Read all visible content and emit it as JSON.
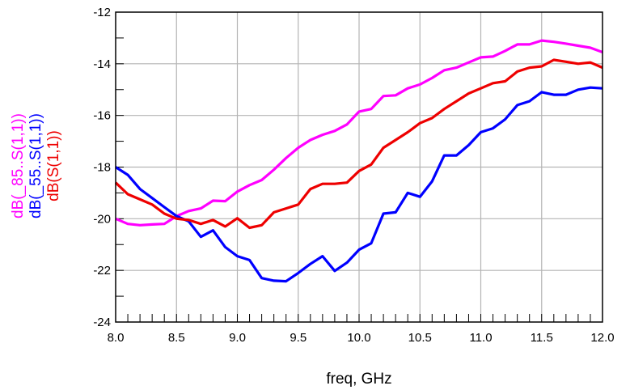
{
  "chart_data": {
    "type": "line",
    "xlabel": "freq, GHz",
    "xlim": [
      8.0,
      12.0
    ],
    "ylim": [
      -24,
      -12
    ],
    "x_ticks": [
      8.0,
      8.5,
      9.0,
      9.5,
      10.0,
      10.5,
      11.0,
      11.5,
      12.0
    ],
    "x_tick_labels": [
      "8.0",
      "8.5",
      "9.0",
      "9.5",
      "10.0",
      "10.5",
      "11.0",
      "11.5",
      "12.0"
    ],
    "x_minor_step": 0.1,
    "y_ticks": [
      -24,
      -22,
      -20,
      -18,
      -16,
      -14,
      -12
    ],
    "y_tick_labels": [
      "-24",
      "-22",
      "-20",
      "-18",
      "-16",
      "-14",
      "-12"
    ],
    "y_minor_step": 1,
    "grid": true,
    "x": [
      8.0,
      8.1,
      8.2,
      8.3,
      8.4,
      8.5,
      8.6,
      8.7,
      8.8,
      8.9,
      9.0,
      9.1,
      9.2,
      9.3,
      9.4,
      9.5,
      9.6,
      9.7,
      9.8,
      9.9,
      10.0,
      10.1,
      10.2,
      10.3,
      10.4,
      10.5,
      10.6,
      10.7,
      10.8,
      10.9,
      11.0,
      11.1,
      11.2,
      11.3,
      11.4,
      11.5,
      11.6,
      11.7,
      11.8,
      11.9,
      12.0
    ],
    "series": [
      {
        "name": "dB(_85..S(1,1))",
        "color": "#ff00ff",
        "values": [
          -20.0,
          -20.2,
          -20.25,
          -20.22,
          -20.2,
          -19.9,
          -19.7,
          -19.6,
          -19.3,
          -19.32,
          -18.95,
          -18.7,
          -18.5,
          -18.1,
          -17.65,
          -17.25,
          -16.95,
          -16.75,
          -16.6,
          -16.35,
          -15.85,
          -15.75,
          -15.25,
          -15.22,
          -14.95,
          -14.8,
          -14.55,
          -14.25,
          -14.15,
          -13.95,
          -13.75,
          -13.72,
          -13.5,
          -13.25,
          -13.25,
          -13.1,
          -13.15,
          -13.22,
          -13.3,
          -13.38,
          -13.55
        ]
      },
      {
        "name": "dB(_55..S(1,1))",
        "color": "#0000ff",
        "values": [
          -18.0,
          -18.3,
          -18.85,
          -19.2,
          -19.55,
          -19.9,
          -20.1,
          -20.7,
          -20.45,
          -21.1,
          -21.45,
          -21.6,
          -22.3,
          -22.4,
          -22.42,
          -22.1,
          -21.75,
          -21.45,
          -22.02,
          -21.7,
          -21.2,
          -20.95,
          -19.8,
          -19.75,
          -19.0,
          -19.15,
          -18.55,
          -17.55,
          -17.55,
          -17.15,
          -16.65,
          -16.5,
          -16.15,
          -15.6,
          -15.45,
          -15.1,
          -15.2,
          -15.2,
          -15.0,
          -14.92,
          -14.95
        ]
      },
      {
        "name": "dB(S(1,1))",
        "color": "#ee0000",
        "values": [
          -18.6,
          -19.05,
          -19.25,
          -19.45,
          -19.8,
          -20.0,
          -20.05,
          -20.2,
          -20.05,
          -20.3,
          -19.98,
          -20.35,
          -20.25,
          -19.75,
          -19.6,
          -19.45,
          -18.85,
          -18.65,
          -18.65,
          -18.6,
          -18.15,
          -17.9,
          -17.25,
          -16.95,
          -16.65,
          -16.3,
          -16.1,
          -15.75,
          -15.45,
          -15.15,
          -14.95,
          -14.75,
          -14.68,
          -14.3,
          -14.15,
          -14.1,
          -13.85,
          -13.92,
          -14.0,
          -13.95,
          -14.15
        ]
      }
    ]
  }
}
